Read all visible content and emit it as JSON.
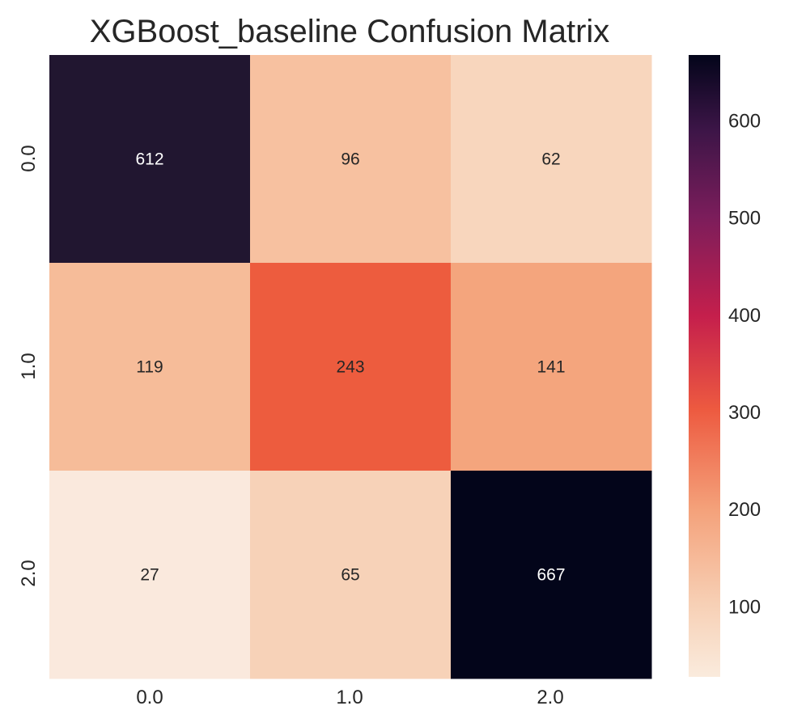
{
  "chart_data": {
    "type": "heatmap",
    "title": "XGBoost_baseline Confusion Matrix",
    "xlabel": "",
    "ylabel": "",
    "x_tick_labels": [
      "0.0",
      "1.0",
      "2.0"
    ],
    "y_tick_labels": [
      "0.0",
      "1.0",
      "2.0"
    ],
    "values": [
      [
        612,
        96,
        62
      ],
      [
        119,
        243,
        141
      ],
      [
        27,
        65,
        667
      ]
    ],
    "annotations": [
      [
        "612",
        "96",
        "62"
      ],
      [
        "119",
        "243",
        "141"
      ],
      [
        "27",
        "65",
        "667"
      ]
    ],
    "value_range": [
      27,
      667
    ],
    "colormap": "rocket_r",
    "colorbar": {
      "position": "right",
      "ticks": [
        100,
        200,
        300,
        400,
        500,
        600
      ],
      "tick_labels": [
        "100",
        "200",
        "300",
        "400",
        "500",
        "600"
      ]
    },
    "grid": false,
    "colors": {
      "cell_0_0": "#211630",
      "cell_0_1": "#f7c1a0",
      "cell_0_2": "#f8d6bd",
      "cell_1_0": "#f6bc99",
      "cell_1_1": "#ed5c3e",
      "cell_1_2": "#f4a57d",
      "cell_2_0": "#fae9dd",
      "cell_2_1": "#f7d2b8",
      "cell_2_2": "#03051a",
      "annotation_dark_bg": "#ffffff",
      "annotation_light_bg": "#262626"
    }
  }
}
